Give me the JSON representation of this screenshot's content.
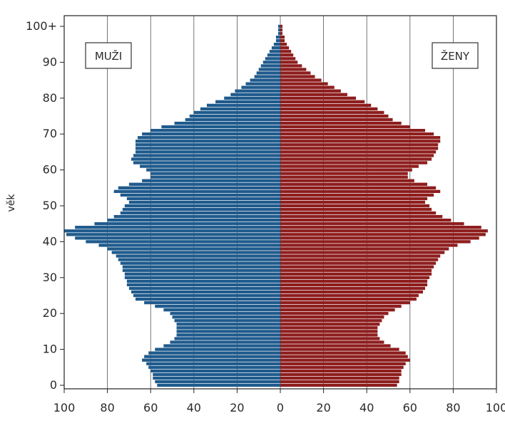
{
  "chart_data": {
    "type": "bar",
    "orientation": "horizontal-population-pyramid",
    "ylabel": "věk",
    "xlim": [
      -100,
      100
    ],
    "ylim": [
      0,
      100
    ],
    "x_ticks": [
      "100",
      "80",
      "60",
      "40",
      "20",
      "0",
      "20",
      "40",
      "60",
      "80",
      "100"
    ],
    "y_ticks": [
      "0",
      "10",
      "20",
      "30",
      "40",
      "50",
      "60",
      "70",
      "80",
      "90",
      "100+"
    ],
    "grid": "vertical",
    "colors": {
      "muzi": "#1f5a8c",
      "zeny": "#8e1d1d"
    },
    "series": [
      {
        "name": "MUŽI",
        "side": "left",
        "values": [
          57,
          58,
          59,
          59,
          60,
          61,
          62,
          64,
          63,
          61,
          58,
          54,
          51,
          49,
          48,
          48,
          48,
          48,
          49,
          50,
          51,
          54,
          58,
          63,
          67,
          68,
          69,
          70,
          71,
          71,
          72,
          72,
          73,
          73,
          74,
          75,
          76,
          78,
          80,
          84,
          90,
          95,
          99,
          100,
          95,
          86,
          80,
          77,
          74,
          73,
          72,
          70,
          71,
          74,
          77,
          75,
          70,
          64,
          60,
          60,
          62,
          65,
          68,
          69,
          68,
          67,
          67,
          67,
          67,
          66,
          64,
          60,
          55,
          49,
          44,
          42,
          40,
          37,
          34,
          30,
          26,
          23,
          21,
          18,
          16,
          14,
          12,
          11,
          10,
          9,
          8,
          7,
          6,
          5,
          4,
          3,
          2,
          2,
          1,
          1,
          1
        ]
      },
      {
        "name": "ŽENY",
        "side": "right",
        "values": [
          54,
          55,
          55,
          56,
          56,
          57,
          58,
          60,
          59,
          58,
          55,
          51,
          48,
          46,
          45,
          45,
          45,
          46,
          47,
          48,
          50,
          53,
          56,
          60,
          63,
          64,
          66,
          67,
          68,
          68,
          69,
          70,
          70,
          71,
          72,
          73,
          74,
          76,
          78,
          82,
          88,
          92,
          95,
          96,
          93,
          85,
          79,
          75,
          72,
          70,
          69,
          67,
          68,
          71,
          74,
          72,
          68,
          62,
          59,
          59,
          61,
          64,
          68,
          70,
          71,
          72,
          73,
          73,
          74,
          74,
          71,
          67,
          60,
          56,
          52,
          50,
          48,
          45,
          42,
          39,
          35,
          31,
          28,
          25,
          22,
          19,
          16,
          14,
          12,
          10,
          8,
          7,
          6,
          5,
          4,
          3,
          2,
          2,
          1,
          1,
          1
        ]
      }
    ]
  },
  "legend": {
    "male": "MUŽI",
    "female": "ŽENY"
  }
}
